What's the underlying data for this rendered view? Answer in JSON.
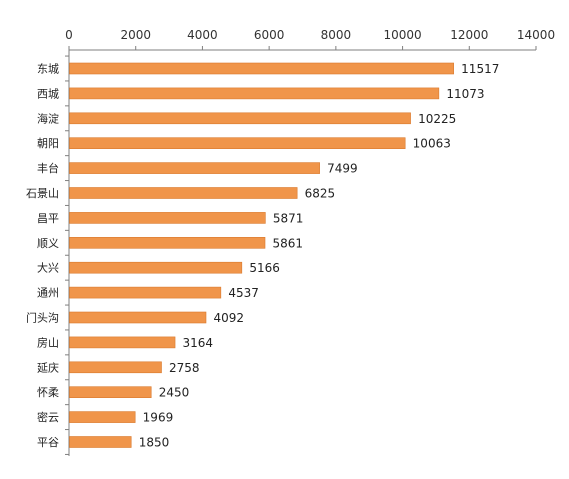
{
  "chart_data": {
    "type": "bar",
    "orientation": "horizontal",
    "categories": [
      "东城",
      "西城",
      "海淀",
      "朝阳",
      "丰台",
      "石景山",
      "昌平",
      "顺义",
      "大兴",
      "通州",
      "门头沟",
      "房山",
      "延庆",
      "怀柔",
      "密云",
      "平谷"
    ],
    "values": [
      11517,
      11073,
      10225,
      10063,
      7499,
      6825,
      5871,
      5861,
      5166,
      4537,
      4092,
      3164,
      2758,
      2450,
      1969,
      1850
    ],
    "xlim": [
      0,
      14000
    ],
    "xticks": [
      "0",
      "2000",
      "4000",
      "6000",
      "8000",
      "10000",
      "12000",
      "14000"
    ],
    "axis_position": "top",
    "grid": false,
    "legend": "none",
    "data_labels": true,
    "bar_color": "#F0954A",
    "bar_edge_color": "#D97A2E",
    "axis_color": "#7F7F7F"
  }
}
